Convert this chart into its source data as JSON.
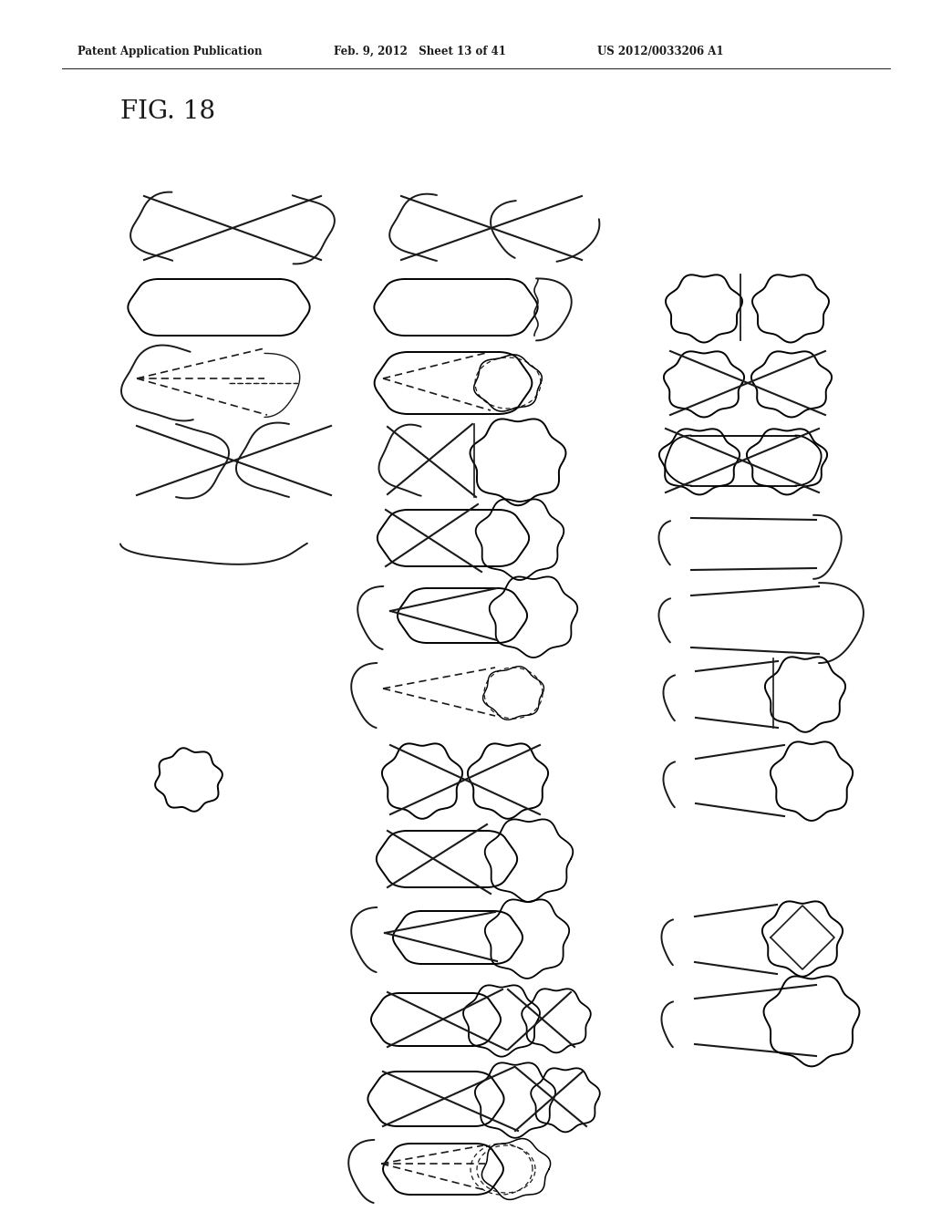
{
  "title": "FIG. 18",
  "header_left": "Patent Application Publication",
  "header_mid": "Feb. 9, 2012   Sheet 13 of 41",
  "header_right": "US 2012/0033206 A1",
  "bg_color": "#ffffff",
  "line_color": "#1a1a1a",
  "fig_width": 10.24,
  "fig_height": 13.2
}
